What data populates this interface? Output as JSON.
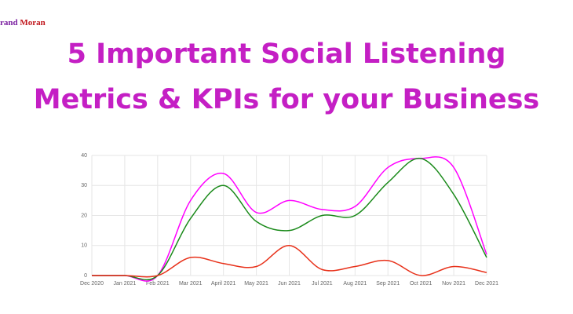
{
  "brand": {
    "first": "rand",
    "second": "Moran"
  },
  "title_lines": [
    "5 Important Social Listening",
    "Metrics & KPIs for your Business"
  ],
  "chart_data": {
    "type": "line",
    "categories": [
      "Dec 2020",
      "Jan 2021",
      "Feb 2021",
      "Mar 2021",
      "April 2021",
      "May 2021",
      "Jun 2021",
      "Jul 2021",
      "Aug 2021",
      "Sep 2021",
      "Oct 2021",
      "Nov 2021",
      "Dec 2021"
    ],
    "series": [
      {
        "color": "#ff00ff",
        "values": [
          0,
          0,
          0,
          25,
          34,
          21,
          25,
          22,
          23,
          36,
          39,
          36,
          7
        ]
      },
      {
        "color": "#1a8a1a",
        "values": [
          0,
          0,
          0,
          19,
          30,
          18,
          15,
          20,
          20,
          31,
          39,
          27,
          6
        ]
      },
      {
        "color": "#e8311a",
        "values": [
          0,
          0,
          0,
          6,
          4,
          3,
          10,
          2,
          3,
          5,
          0,
          3,
          1
        ]
      }
    ],
    "ylim": [
      0,
      40
    ],
    "yticks": [
      0,
      10,
      20,
      30,
      40
    ],
    "grid": true
  }
}
